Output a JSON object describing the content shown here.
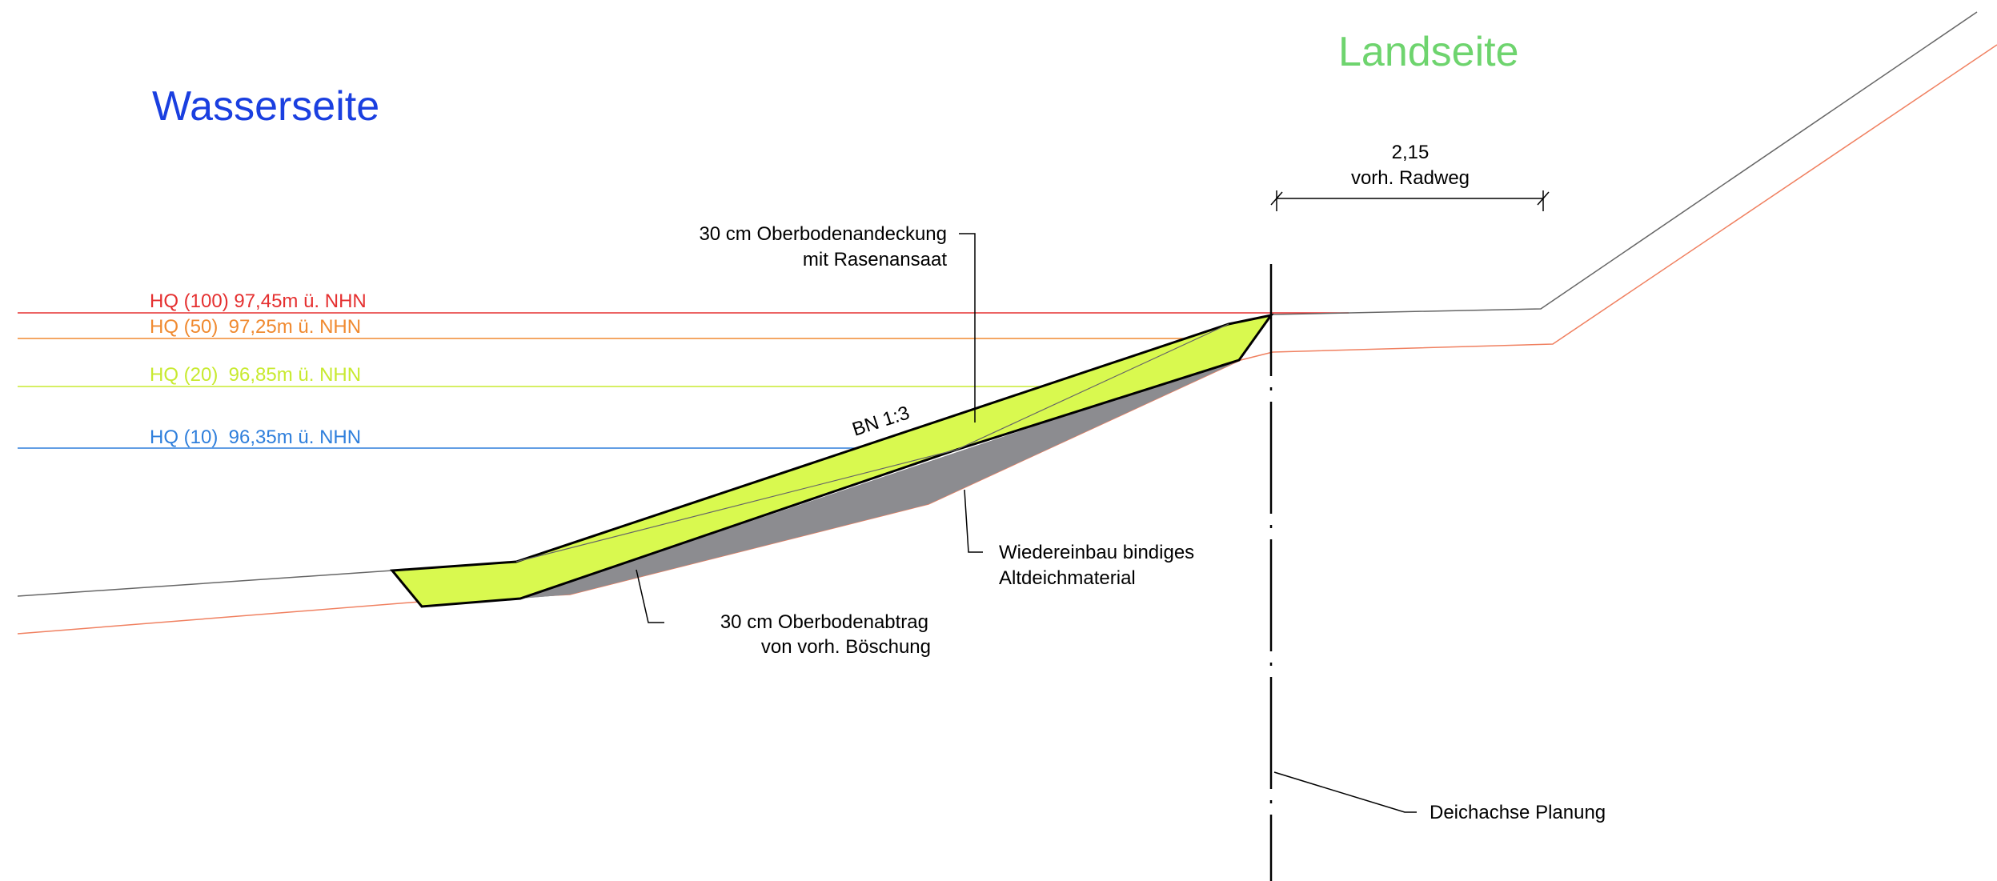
{
  "headings": {
    "water_side": "Wasserseite",
    "land_side": "Landseite"
  },
  "water_levels": [
    {
      "label": "HQ (100) 97,45m ü. NHN",
      "color": "#e53030"
    },
    {
      "label": "HQ (50)  97,25m ü. NHN",
      "color": "#f08a30"
    },
    {
      "label": "HQ (20)  96,85m ü. NHN",
      "color": "#c8ea30"
    },
    {
      "label": "HQ (10)  96,35m ü. NHN",
      "color": "#2f7fdc"
    }
  ],
  "dimension": {
    "value": "2,15",
    "label": "vorh. Radweg"
  },
  "slope_label": "BN 1:3",
  "annotations": {
    "topsoil_cover_line1": "30 cm Oberbodenandeckung",
    "topsoil_cover_line2": "mit Rasenansaat",
    "reuse_line1": "Wiedereinbau bindiges",
    "reuse_line2": "Altdeichmaterial",
    "topsoil_removal_line1": "30 cm Oberbodenabtrag",
    "topsoil_removal_line2": "von vorh. Böschung",
    "dike_axis": "Deichachse Planung"
  },
  "colors": {
    "water_side_heading": "#1a3fe0",
    "land_side_heading": "#6ed46e",
    "new_fill": "#d9f94f",
    "old_material": "#8c8c90",
    "existing_ground": "#666666",
    "excavation_line": "#f08060"
  }
}
